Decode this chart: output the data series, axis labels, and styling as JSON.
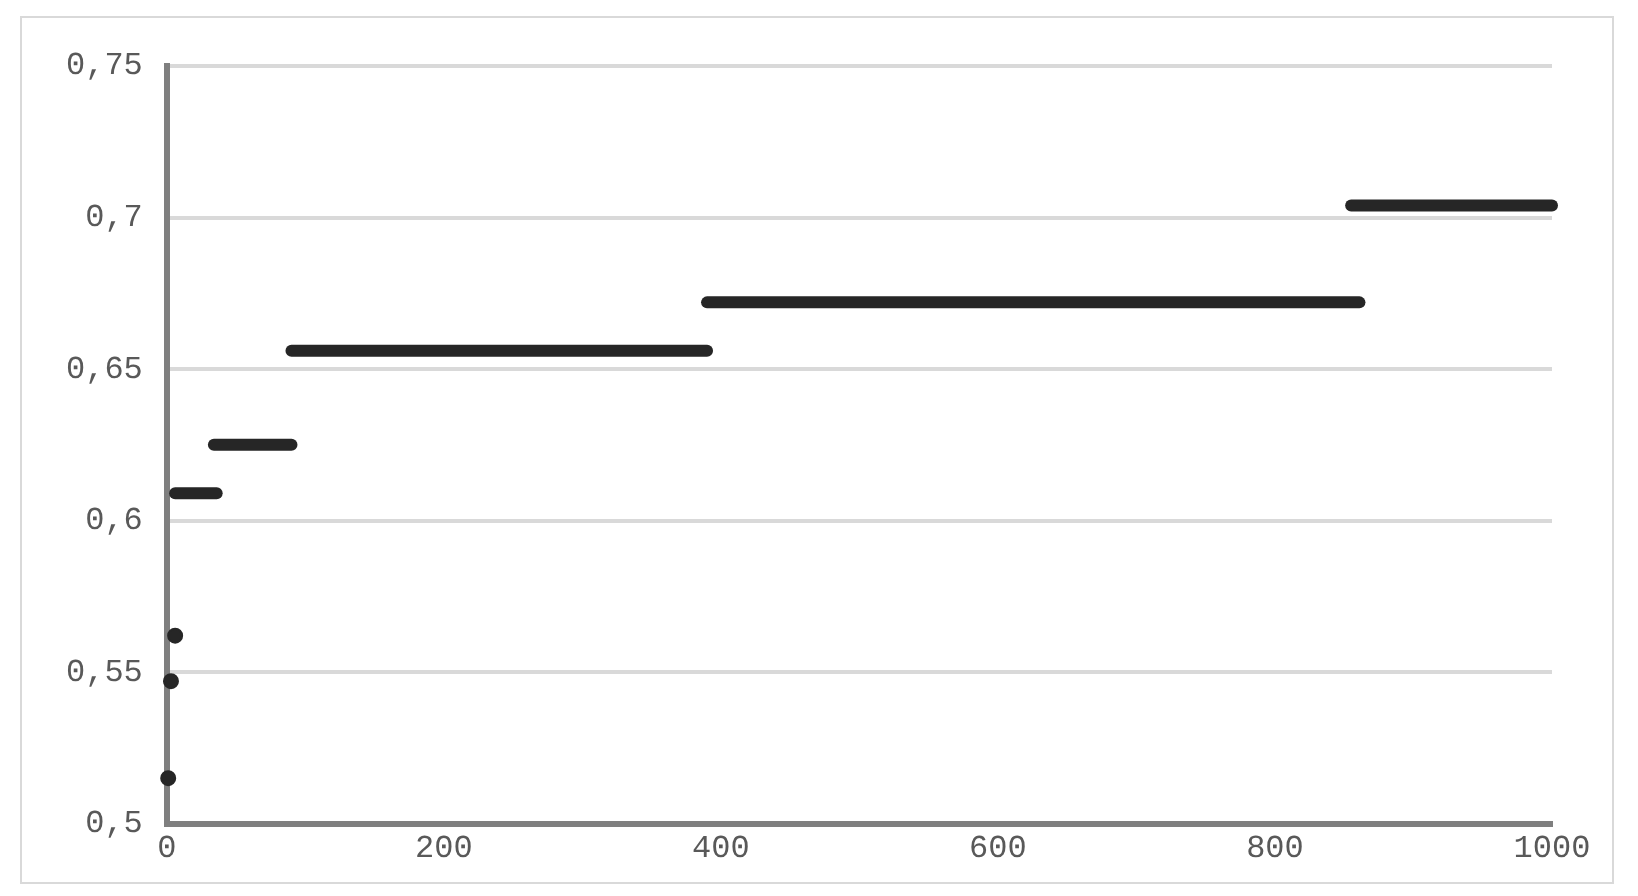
{
  "chart_data": {
    "type": "scatter",
    "xlim": [
      0,
      1000
    ],
    "xticks": [
      0,
      200,
      400,
      600,
      800,
      1000
    ],
    "ylim": [
      0.5,
      0.75
    ],
    "yticks": [
      {
        "value": 0.5,
        "label": "0,5"
      },
      {
        "value": 0.55,
        "label": "0,55"
      },
      {
        "value": 0.6,
        "label": "0,6"
      },
      {
        "value": 0.65,
        "label": "0,65"
      },
      {
        "value": 0.7,
        "label": "0,7"
      },
      {
        "value": 0.75,
        "label": "0,75"
      }
    ],
    "grid": "y",
    "legend": false,
    "series": [
      {
        "marker": "circle",
        "color": "#262626",
        "x": [
          1,
          3,
          6
        ],
        "values": [
          0.515,
          0.547,
          0.562
        ]
      },
      {
        "type": "line",
        "marker": "none",
        "color": "#262626",
        "x": [
          6,
          36
        ],
        "values": [
          0.609,
          0.609
        ]
      },
      {
        "type": "line",
        "marker": "none",
        "color": "#262626",
        "x": [
          34,
          90
        ],
        "values": [
          0.625,
          0.625
        ]
      },
      {
        "type": "line",
        "marker": "none",
        "color": "#262626",
        "x": [
          90,
          390
        ],
        "values": [
          0.656,
          0.656
        ]
      },
      {
        "type": "line",
        "marker": "none",
        "color": "#262626",
        "x": [
          390,
          861
        ],
        "values": [
          0.672,
          0.672
        ]
      },
      {
        "type": "line",
        "marker": "none",
        "color": "#262626",
        "x": [
          855,
          1000
        ],
        "values": [
          0.704,
          0.704
        ]
      }
    ]
  }
}
